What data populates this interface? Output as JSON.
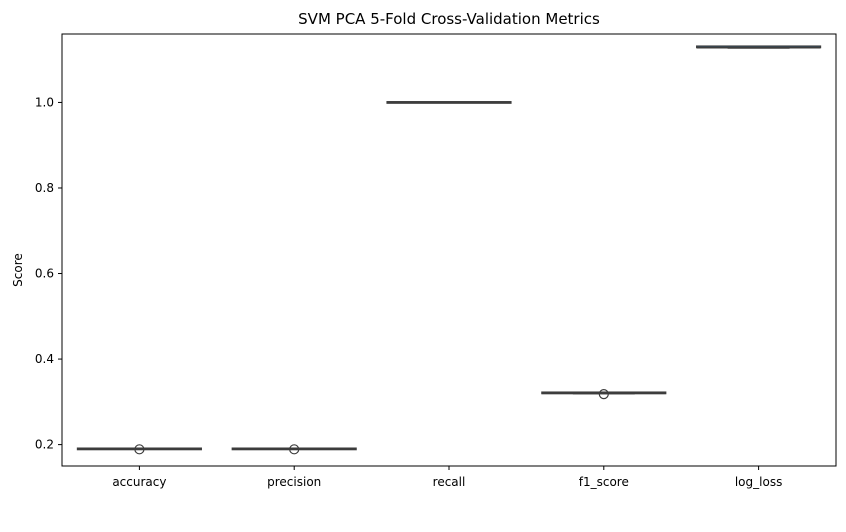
{
  "chart_data": {
    "type": "box",
    "title": "SVM PCA 5-Fold Cross-Validation Metrics",
    "xlabel": "",
    "ylabel": "Score",
    "ylim": [
      0.15,
      1.16
    ],
    "yticks": [
      0.2,
      0.4,
      0.6,
      0.8,
      1.0
    ],
    "yticklabels": [
      "0.2",
      "0.4",
      "0.6",
      "0.8",
      "1.0"
    ],
    "grid": false,
    "categories": [
      "accuracy",
      "precision",
      "recall",
      "f1_score",
      "log_loss"
    ],
    "boxes": [
      {
        "category": "accuracy",
        "whislo": 0.19,
        "q1": 0.19,
        "med": 0.19,
        "q3": 0.19,
        "whishi": 0.19,
        "fliers": [
          0.189
        ]
      },
      {
        "category": "precision",
        "whislo": 0.19,
        "q1": 0.19,
        "med": 0.19,
        "q3": 0.19,
        "whishi": 0.19,
        "fliers": [
          0.189
        ]
      },
      {
        "category": "recall",
        "whislo": 1.0,
        "q1": 1.0,
        "med": 1.0,
        "q3": 1.0,
        "whishi": 1.0,
        "fliers": []
      },
      {
        "category": "f1_score",
        "whislo": 0.319,
        "q1": 0.319,
        "med": 0.32,
        "q3": 0.321,
        "whishi": 0.321,
        "fliers": [
          0.318
        ]
      },
      {
        "category": "log_loss",
        "whislo": 1.127,
        "q1": 1.127,
        "med": 1.128,
        "q3": 1.13,
        "whishi": 1.13,
        "fliers": []
      }
    ],
    "colors": {
      "box_face": "#1f77b4",
      "line": "#3d3d3d",
      "axis": "#000000"
    }
  }
}
